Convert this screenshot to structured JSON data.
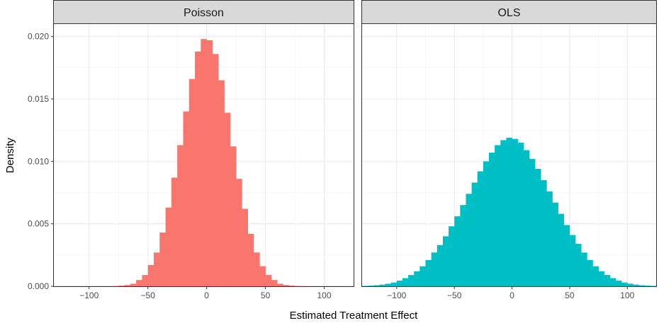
{
  "chart_data": {
    "type": "bar",
    "facets": [
      "Poisson",
      "OLS"
    ],
    "xlabel": "Estimated Treatment Effect",
    "ylabel": "Density",
    "xlim": [
      -130,
      125
    ],
    "ylim": [
      0,
      0.021
    ],
    "x_ticks": [
      -100,
      -50,
      0,
      50,
      100
    ],
    "y_ticks": [
      0,
      0.005,
      0.01,
      0.015,
      0.02
    ],
    "x_tick_labels": [
      "−100",
      "−50",
      "0",
      "50",
      "100"
    ],
    "y_tick_labels": [
      "0.000",
      "0.005",
      "0.010",
      "0.015",
      "0.020"
    ],
    "bin_width": 5,
    "grid": true,
    "legend": "none",
    "series": [
      {
        "name": "Poisson",
        "color": "#F8766D",
        "x": [
          -127.5,
          -122.5,
          -117.5,
          -112.5,
          -107.5,
          -102.5,
          -97.5,
          -92.5,
          -87.5,
          -82.5,
          -77.5,
          -72.5,
          -67.5,
          -62.5,
          -57.5,
          -52.5,
          -47.5,
          -42.5,
          -37.5,
          -32.5,
          -27.5,
          -22.5,
          -17.5,
          -12.5,
          -7.5,
          -2.5,
          2.5,
          7.5,
          12.5,
          17.5,
          22.5,
          27.5,
          32.5,
          37.5,
          42.5,
          47.5,
          52.5,
          57.5,
          62.5,
          67.5,
          72.5,
          77.5,
          82.5,
          87.5,
          92.5,
          97.5,
          102.5,
          107.5,
          112.5,
          117.5,
          122.5
        ],
        "values": [
          1e-05,
          1e-05,
          1e-05,
          1e-05,
          1e-05,
          1e-05,
          1e-05,
          1e-05,
          1e-05,
          1e-05,
          2e-05,
          5e-05,
          0.0001,
          0.0002,
          0.0005,
          0.0009,
          0.0017,
          0.0027,
          0.0043,
          0.0063,
          0.0087,
          0.0113,
          0.014,
          0.0166,
          0.0188,
          0.0198,
          0.0197,
          0.0186,
          0.0165,
          0.0139,
          0.0112,
          0.0086,
          0.0062,
          0.0042,
          0.0027,
          0.0016,
          0.0009,
          0.0005,
          0.0002,
          0.0001,
          5e-05,
          2e-05,
          1e-05,
          1e-05,
          1e-05,
          1e-05,
          1e-05,
          1e-05,
          1e-05,
          1e-05,
          1e-05
        ]
      },
      {
        "name": "OLS",
        "color": "#00BFC4",
        "x": [
          -127.5,
          -122.5,
          -117.5,
          -112.5,
          -107.5,
          -102.5,
          -97.5,
          -92.5,
          -87.5,
          -82.5,
          -77.5,
          -72.5,
          -67.5,
          -62.5,
          -57.5,
          -52.5,
          -47.5,
          -42.5,
          -37.5,
          -32.5,
          -27.5,
          -22.5,
          -17.5,
          -12.5,
          -7.5,
          -2.5,
          2.5,
          7.5,
          12.5,
          17.5,
          22.5,
          27.5,
          32.5,
          37.5,
          42.5,
          47.5,
          52.5,
          57.5,
          62.5,
          67.5,
          72.5,
          77.5,
          82.5,
          87.5,
          92.5,
          97.5,
          102.5,
          107.5,
          112.5,
          117.5,
          122.5
        ],
        "values": [
          3e-05,
          5e-05,
          8e-05,
          0.00013,
          0.0002,
          0.0003,
          0.00045,
          0.00065,
          0.0009,
          0.0012,
          0.0016,
          0.0021,
          0.0027,
          0.0033,
          0.004,
          0.0048,
          0.0056,
          0.0065,
          0.0074,
          0.0083,
          0.0092,
          0.01,
          0.0107,
          0.0113,
          0.0117,
          0.0119,
          0.0118,
          0.0115,
          0.0109,
          0.0102,
          0.0094,
          0.0085,
          0.0076,
          0.0067,
          0.0058,
          0.0049,
          0.0041,
          0.0034,
          0.0027,
          0.0021,
          0.0016,
          0.0012,
          0.0009,
          0.00065,
          0.00045,
          0.0003,
          0.0002,
          0.00013,
          8e-05,
          5e-05,
          3e-05
        ]
      }
    ]
  }
}
